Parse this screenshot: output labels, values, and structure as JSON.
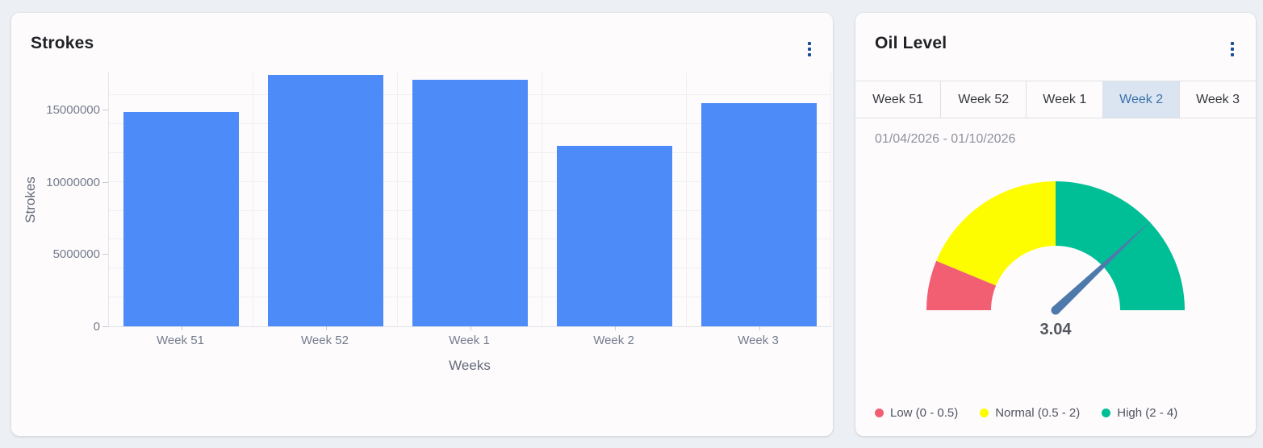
{
  "colors": {
    "page_bg": "#ecf0f4",
    "card_bg": "#fefbfd",
    "kebab_accent": "#1c4e9c",
    "selected_tab_bg": "#dbe5f1",
    "selected_tab_text": "#3b70aa"
  },
  "chart_data": [
    {
      "type": "bar",
      "title": "Strokes",
      "categories": [
        "Week 51",
        "Week 52",
        "Week 1",
        "Week 2",
        "Week 3"
      ],
      "values": [
        14850000,
        17400000,
        17050000,
        12500000,
        15430000
      ],
      "xlabel": "Weeks",
      "ylabel": "Strokes",
      "ylim": [
        0,
        17560000
      ],
      "yticks": [
        0,
        5000000,
        10000000,
        15000000
      ],
      "grid_step": 2000000,
      "grid_on": true,
      "bar_color": "#4d8bf8",
      "legend_position": "none"
    },
    {
      "type": "gauge",
      "title": "Oil Level",
      "min": 0,
      "max": 4,
      "value": 3.04,
      "value_label": "3.04",
      "segments": [
        {
          "label": "Low",
          "from": 0,
          "to": 0.5,
          "color": "#f25f73"
        },
        {
          "label": "Normal",
          "from": 0.5,
          "to": 2,
          "color": "#fdfd00"
        },
        {
          "label": "High",
          "from": 2,
          "to": 4,
          "color": "#00bf96"
        }
      ],
      "needle_color": "#4d7aab",
      "legend_position": "bottom"
    }
  ],
  "left_card": {
    "title": "Strokes",
    "menu_icon": "kebab-menu"
  },
  "right_card": {
    "title": "Oil Level",
    "menu_icon": "kebab-menu",
    "tabs": [
      {
        "label": "Week 51",
        "selected": false
      },
      {
        "label": "Week 52",
        "selected": false
      },
      {
        "label": "Week 1",
        "selected": false
      },
      {
        "label": "Week 2",
        "selected": true
      },
      {
        "label": "Week 3",
        "selected": false
      }
    ],
    "date_range": "01/04/2026 - 01/10/2026",
    "legend": [
      {
        "label": "Low (0 - 0.5)",
        "color": "#f25f73"
      },
      {
        "label": "Normal (0.5 - 2)",
        "color": "#fdfd00"
      },
      {
        "label": "High (2 - 4)",
        "color": "#00bf96"
      }
    ]
  }
}
